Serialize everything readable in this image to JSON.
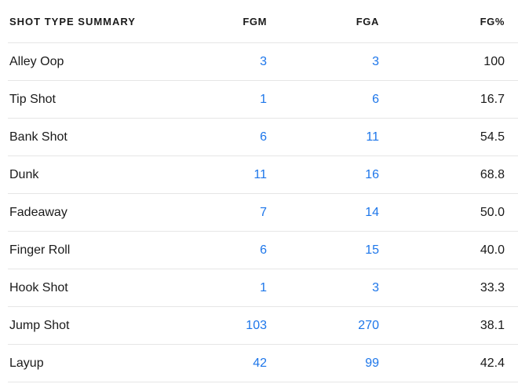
{
  "colors": {
    "link_blue": "#1d76ea",
    "text_dark": "#1a1a1a",
    "divider": "#e6e6e6",
    "background": "#ffffff"
  },
  "chart_data": {
    "type": "table",
    "title": "SHOT TYPE SUMMARY",
    "columns": [
      "FGM",
      "FGA",
      "FG%"
    ],
    "rows": [
      {
        "shot_type": "Alley Oop",
        "fgm": "3",
        "fga": "3",
        "fg_pct": "100"
      },
      {
        "shot_type": "Tip Shot",
        "fgm": "1",
        "fga": "6",
        "fg_pct": "16.7"
      },
      {
        "shot_type": "Bank Shot",
        "fgm": "6",
        "fga": "11",
        "fg_pct": "54.5"
      },
      {
        "shot_type": "Dunk",
        "fgm": "11",
        "fga": "16",
        "fg_pct": "68.8"
      },
      {
        "shot_type": "Fadeaway",
        "fgm": "7",
        "fga": "14",
        "fg_pct": "50.0"
      },
      {
        "shot_type": "Finger Roll",
        "fgm": "6",
        "fga": "15",
        "fg_pct": "40.0"
      },
      {
        "shot_type": "Hook Shot",
        "fgm": "1",
        "fga": "3",
        "fg_pct": "33.3"
      },
      {
        "shot_type": "Jump Shot",
        "fgm": "103",
        "fga": "270",
        "fg_pct": "38.1"
      },
      {
        "shot_type": "Layup",
        "fgm": "42",
        "fga": "99",
        "fg_pct": "42.4"
      }
    ]
  }
}
